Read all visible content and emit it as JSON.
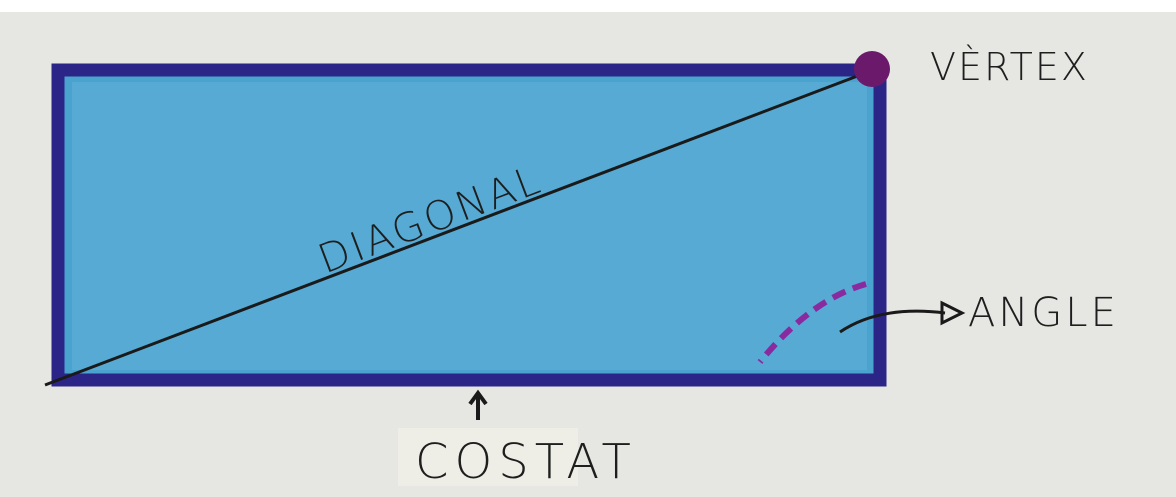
{
  "labels": {
    "vertex": "VÈRTEX",
    "diagonal": "DIAGONAL",
    "angle": "ANGLE",
    "side": "COSTAT"
  }
}
